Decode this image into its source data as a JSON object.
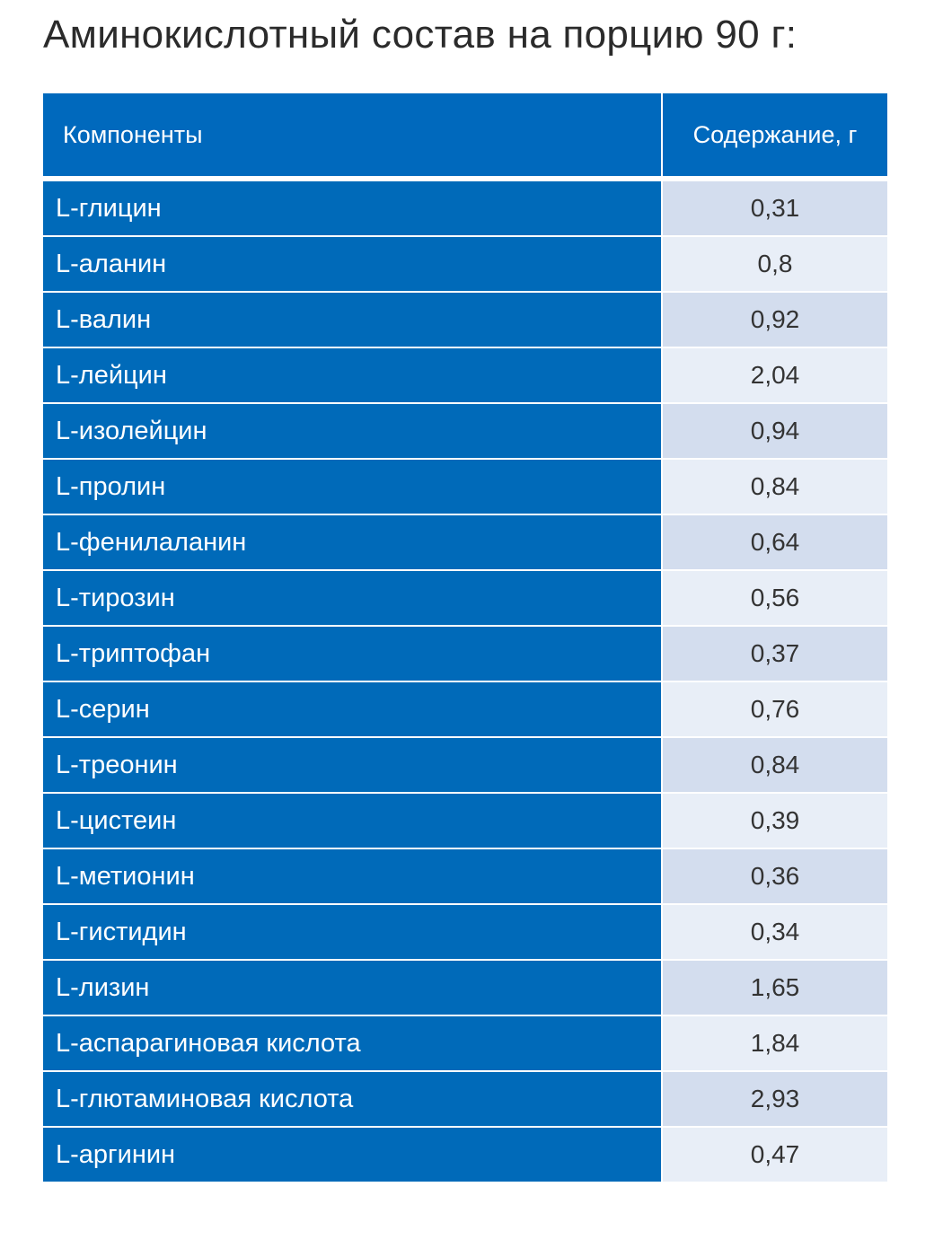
{
  "title": "Аминокислотный состав на порцию 90 г:",
  "table": {
    "header": {
      "component": "Компоненты",
      "content": "Содержание, г"
    },
    "rows": [
      {
        "name": "L-глицин",
        "value": "0,31"
      },
      {
        "name": "L-аланин",
        "value": "0,8"
      },
      {
        "name": "L-валин",
        "value": "0,92"
      },
      {
        "name": "L-лейцин",
        "value": "2,04"
      },
      {
        "name": "L-изолейцин",
        "value": "0,94"
      },
      {
        "name": "L-пролин",
        "value": "0,84"
      },
      {
        "name": "L-фенилаланин",
        "value": "0,64"
      },
      {
        "name": "L-тирозин",
        "value": "0,56"
      },
      {
        "name": "L-триптофан",
        "value": "0,37"
      },
      {
        "name": "L-серин",
        "value": "0,76"
      },
      {
        "name": "L-треонин",
        "value": "0,84"
      },
      {
        "name": "L-цистеин",
        "value": "0,39"
      },
      {
        "name": "L-метионин",
        "value": "0,36"
      },
      {
        "name": "L-гистидин",
        "value": "0,34"
      },
      {
        "name": "L-лизин",
        "value": "1,65"
      },
      {
        "name": "L-аспарагиновая кислота",
        "value": "1,84"
      },
      {
        "name": "L-глютаминовая кислота",
        "value": "2,93"
      },
      {
        "name": "L-аргинин",
        "value": "0,47"
      }
    ]
  },
  "colors": {
    "header_blue": "#0069bd",
    "name_blue": "#006ab9",
    "value_light_a": "#d3ddee",
    "value_light_b": "#e8eef7"
  }
}
